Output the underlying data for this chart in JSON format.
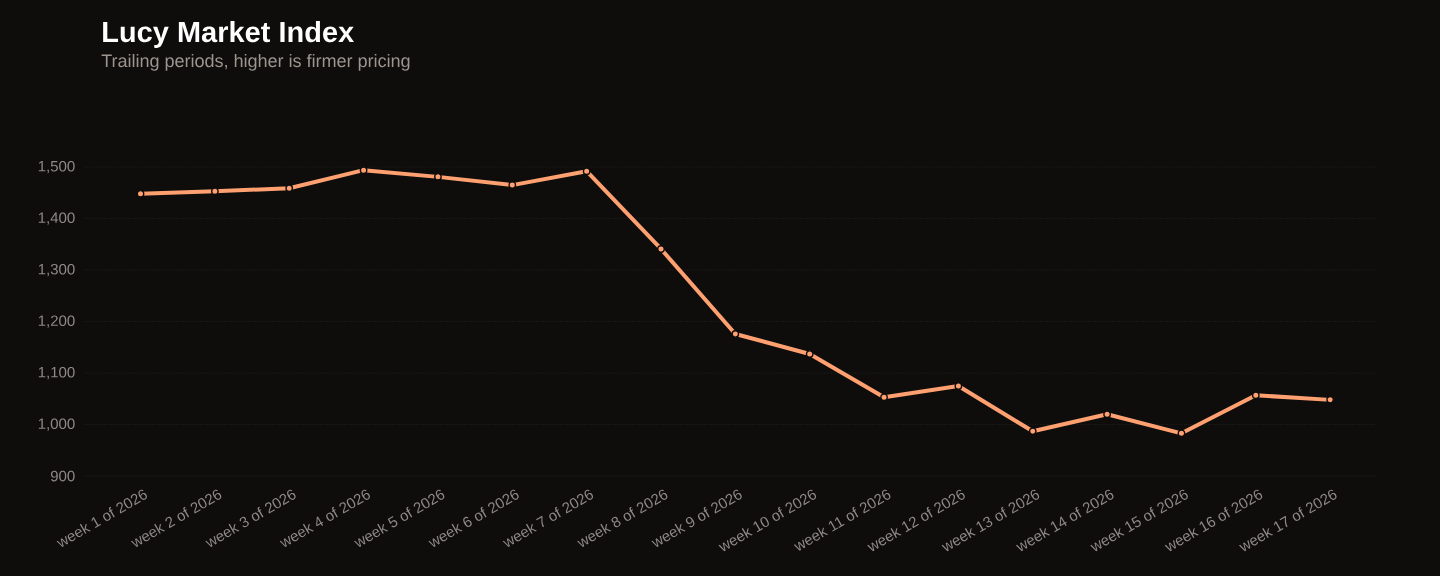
{
  "chart_data": {
    "type": "line",
    "title": "Lucy Market Index",
    "subtitle": "Trailing periods, higher is firmer pricing",
    "categories": [
      "week 1 of 2026",
      "week 2 of 2026",
      "week 3 of 2026",
      "week 4 of 2026",
      "week 5 of 2026",
      "week 6 of 2026",
      "week 7 of 2026",
      "week 8 of 2026",
      "week 9 of 2026",
      "week 10 of 2026",
      "week 11 of 2026",
      "week 12 of 2026",
      "week 13 of 2026",
      "week 14 of 2026",
      "week 15 of 2026",
      "week 16 of 2026",
      "week 17 of 2026"
    ],
    "values": [
      1448,
      1453,
      1459,
      1494,
      1481,
      1465,
      1492,
      1341,
      1176,
      1137,
      1053,
      1075,
      987,
      1020,
      983,
      1057,
      1048
    ],
    "color": "#ffa070",
    "ylim": [
      900,
      1500
    ],
    "yticks": [
      {
        "value": 900,
        "label": "900"
      },
      {
        "value": 1000,
        "label": "1,000"
      },
      {
        "value": 1100,
        "label": "1,100"
      },
      {
        "value": 1200,
        "label": "1,200"
      },
      {
        "value": 1300,
        "label": "1,300"
      },
      {
        "value": 1400,
        "label": "1,400"
      },
      {
        "value": 1500,
        "label": "1,500"
      }
    ],
    "grid": "y",
    "marker": "circle",
    "line_style": "solid"
  }
}
